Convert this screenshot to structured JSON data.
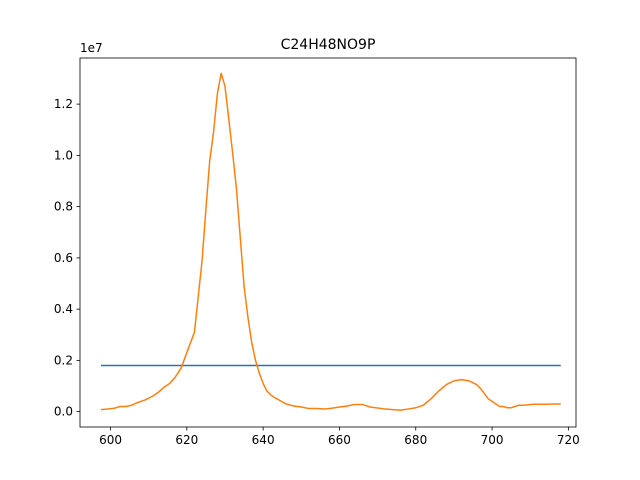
{
  "chart_data": {
    "type": "line",
    "title": "C24H48NO9P",
    "xlabel": "",
    "ylabel": "",
    "y_offset_label": "1e7",
    "xlim": [
      592,
      722
    ],
    "ylim": [
      -600000,
      13800000
    ],
    "x_ticks": [
      600,
      620,
      640,
      660,
      680,
      700,
      720
    ],
    "x_tick_labels": [
      "600",
      "620",
      "640",
      "660",
      "680",
      "700",
      "720"
    ],
    "y_ticks": [
      0,
      2000000,
      4000000,
      6000000,
      8000000,
      10000000,
      12000000
    ],
    "y_tick_labels": [
      "0.0",
      "0.2",
      "0.4",
      "0.6",
      "0.8",
      "1.0",
      "1.2"
    ],
    "grid": false,
    "series": [
      {
        "color": "#1f77b4",
        "x": [
          597.5,
          718
        ],
        "y": [
          1800000,
          1800000
        ]
      },
      {
        "color": "#ff7f0e",
        "x": [
          597.5,
          599,
          601,
          602.5,
          604,
          605.5,
          607,
          609,
          611,
          612.5,
          614,
          615.5,
          617,
          618.5,
          620,
          621,
          622,
          623,
          624,
          625,
          626,
          627,
          628,
          629,
          630,
          631,
          632,
          633,
          634,
          635,
          636,
          637,
          638,
          639,
          640,
          641,
          642,
          643,
          644,
          645,
          646,
          648,
          650,
          652,
          654,
          656,
          658,
          660,
          662,
          664,
          666,
          668,
          670,
          672,
          674,
          676,
          678,
          680,
          682,
          684,
          686,
          688,
          690,
          692,
          694,
          696,
          697,
          698,
          699,
          700,
          701,
          702,
          703,
          704,
          705,
          706,
          707,
          708,
          709,
          710,
          711,
          712,
          714,
          716,
          718
        ],
        "y": [
          80000,
          100000,
          130000,
          200000,
          200000,
          250000,
          350000,
          450000,
          600000,
          750000,
          950000,
          1100000,
          1350000,
          1700000,
          2300000,
          2700000,
          3100000,
          4500000,
          5900000,
          7900000,
          9800000,
          10900000,
          12400000,
          13200000,
          12700000,
          11400000,
          10100000,
          8700000,
          6800000,
          4900000,
          3700000,
          2700000,
          2000000,
          1500000,
          1100000,
          800000,
          650000,
          550000,
          470000,
          380000,
          300000,
          220000,
          180000,
          120000,
          120000,
          100000,
          130000,
          180000,
          220000,
          280000,
          280000,
          180000,
          140000,
          100000,
          80000,
          60000,
          100000,
          150000,
          250000,
          500000,
          800000,
          1050000,
          1200000,
          1250000,
          1200000,
          1050000,
          900000,
          700000,
          500000,
          400000,
          300000,
          200000,
          200000,
          150000,
          150000,
          200000,
          250000,
          250000,
          260000,
          280000,
          290000,
          290000,
          290000,
          300000,
          300000
        ]
      }
    ]
  }
}
